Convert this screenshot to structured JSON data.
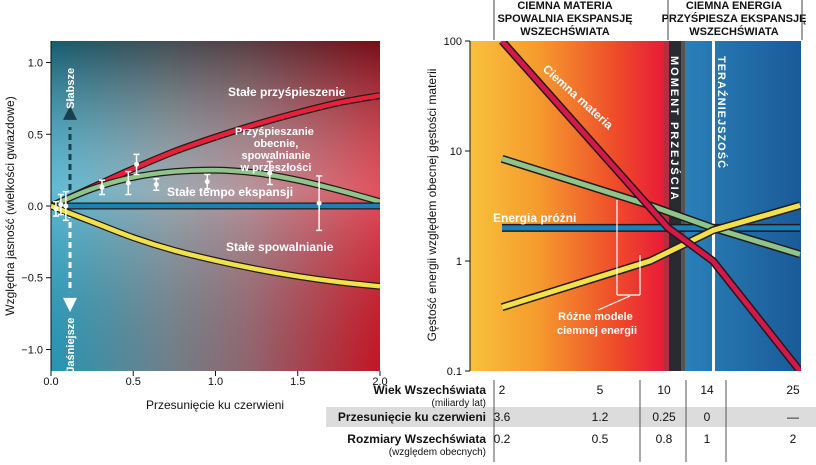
{
  "colors": {
    "accelerating": "#e8203a",
    "present_accel": "#8fc48a",
    "constant": "#1b7fb8",
    "decelerating": "#f2e24a",
    "dark_matter": "#d4184a",
    "dark_energy_yellow": "#f2e24a",
    "vacuum": "#1b7fb8",
    "outline": "#241a1a"
  },
  "chart_data": [
    {
      "type": "line",
      "xlabel": "Przesunięcie ku czerwieni",
      "ylabel": "Względna jasność (wielkości gwiazdowe)",
      "xlim": [
        0.0,
        2.0
      ],
      "ylim": [
        -1.15,
        1.15
      ],
      "xticks": [
        0.0,
        0.5,
        1.0,
        1.5,
        2.0
      ],
      "xtick_labels": [
        "0.0",
        "0.5",
        "1.0",
        "1.5",
        "2.0"
      ],
      "yticks": [
        1.0,
        0.5,
        0.0,
        -0.5,
        -1.0
      ],
      "ytick_labels": [
        "1.0",
        "0.5",
        "0.0",
        "−0.5",
        "−1.0"
      ],
      "arrow_labels": {
        "up": "Słabsze",
        "down": "Jaśniejsze"
      },
      "series": [
        {
          "name": "Stałe przyśpieszenie",
          "color_key": "accelerating",
          "x": [
            0,
            0.25,
            0.5,
            0.75,
            1.0,
            1.25,
            1.5,
            1.75,
            2.0
          ],
          "y": [
            0,
            0.13,
            0.26,
            0.38,
            0.48,
            0.57,
            0.65,
            0.72,
            0.77
          ]
        },
        {
          "name": "Przyśpieszanie obecnie, spowalnianie w przeszłości",
          "color_key": "present_accel",
          "x": [
            0,
            0.25,
            0.5,
            0.75,
            1.0,
            1.25,
            1.5,
            1.75,
            2.0
          ],
          "y": [
            0,
            0.12,
            0.2,
            0.24,
            0.25,
            0.23,
            0.18,
            0.11,
            0.03
          ]
        },
        {
          "name": "Stałe tempo ekspansji",
          "color_key": "constant",
          "x": [
            0,
            2.0
          ],
          "y": [
            0,
            0
          ]
        },
        {
          "name": "Stałe spowalnianie",
          "color_key": "decelerating",
          "x": [
            0,
            0.25,
            0.5,
            0.75,
            1.0,
            1.25,
            1.5,
            1.75,
            2.0
          ],
          "y": [
            0,
            -0.11,
            -0.22,
            -0.31,
            -0.38,
            -0.44,
            -0.49,
            -0.53,
            -0.56
          ]
        }
      ],
      "points": [
        {
          "x": 0.03,
          "y": -0.02,
          "err": 0.05
        },
        {
          "x": 0.06,
          "y": 0.01,
          "err": 0.07
        },
        {
          "x": 0.09,
          "y": 0.0,
          "err": 0.1
        },
        {
          "x": 0.31,
          "y": 0.13,
          "err": 0.05
        },
        {
          "x": 0.47,
          "y": 0.16,
          "err": 0.08
        },
        {
          "x": 0.52,
          "y": 0.29,
          "err": 0.07
        },
        {
          "x": 0.64,
          "y": 0.15,
          "err": 0.04
        },
        {
          "x": 0.95,
          "y": 0.17,
          "err": 0.05
        },
        {
          "x": 1.33,
          "y": 0.23,
          "err": 0.08
        },
        {
          "x": 1.63,
          "y": 0.02,
          "err": 0.19
        }
      ]
    },
    {
      "type": "line",
      "ylabel": "Gęstość energii względem obecnej gęstości materii",
      "yscale": "log",
      "ylim": [
        0.1,
        100
      ],
      "yticks": [
        100,
        10,
        1,
        0.1
      ],
      "ytick_labels": [
        "100",
        "10",
        "1",
        "0.1"
      ],
      "x_axis_is": "redshift",
      "xlim": [
        3.6,
        0
      ],
      "header_left": [
        "CIEMNA MATERIA",
        "SPOWALNIA EKSPANSJĘ",
        "WSZECHŚWIATA"
      ],
      "header_right": [
        "CIEMNA ENERGIA",
        "PRZYŚPIESZA EKSPANSJĘ",
        "WSZECHŚWIATA"
      ],
      "band_transition": "MOMENT PRZEJŚCIA",
      "band_present": "TERAŹNIEJSZOŚĆ",
      "label_dark_matter": "Ciemna materia",
      "label_vacuum": "Energia próżni",
      "label_models": [
        "Różne modele",
        "ciemnej energii"
      ],
      "series": [
        {
          "name": "Ciemna materia",
          "color_key": "dark_matter",
          "x": [
            3.6,
            0.25,
            0,
            -0.5
          ],
          "y": [
            100,
            2.0,
            1.0,
            0.1
          ]
        },
        {
          "name": "Energia próżni",
          "color_key": "vacuum",
          "x": [
            3.6,
            -0.5
          ],
          "y": [
            2.0,
            2.0
          ]
        },
        {
          "color_key": "present_accel",
          "x": [
            3.6,
            0.5,
            0,
            -0.5
          ],
          "y": [
            8.5,
            3.2,
            2.0,
            1.15
          ]
        },
        {
          "color_key": "dark_energy_yellow",
          "x": [
            3.6,
            0.5,
            0,
            -0.5
          ],
          "y": [
            0.38,
            1.0,
            1.9,
            3.2
          ]
        }
      ],
      "table": {
        "rows": [
          {
            "label": "Wiek Wszechświata",
            "sublabel": "(miliardy lat)",
            "values": [
              "2",
              "5",
              "10",
              "14",
              "25"
            ]
          },
          {
            "label": "Przesunięcie ku czerwieni",
            "sublabel": "",
            "values": [
              "3.6",
              "1.2",
              "0.25",
              "0",
              "—"
            ]
          },
          {
            "label": "Rozmiary Wszechświata",
            "sublabel": "(względem obecnych)",
            "values": [
              "0.2",
              "0.5",
              "0.8",
              "1",
              "2"
            ]
          }
        ]
      }
    }
  ]
}
